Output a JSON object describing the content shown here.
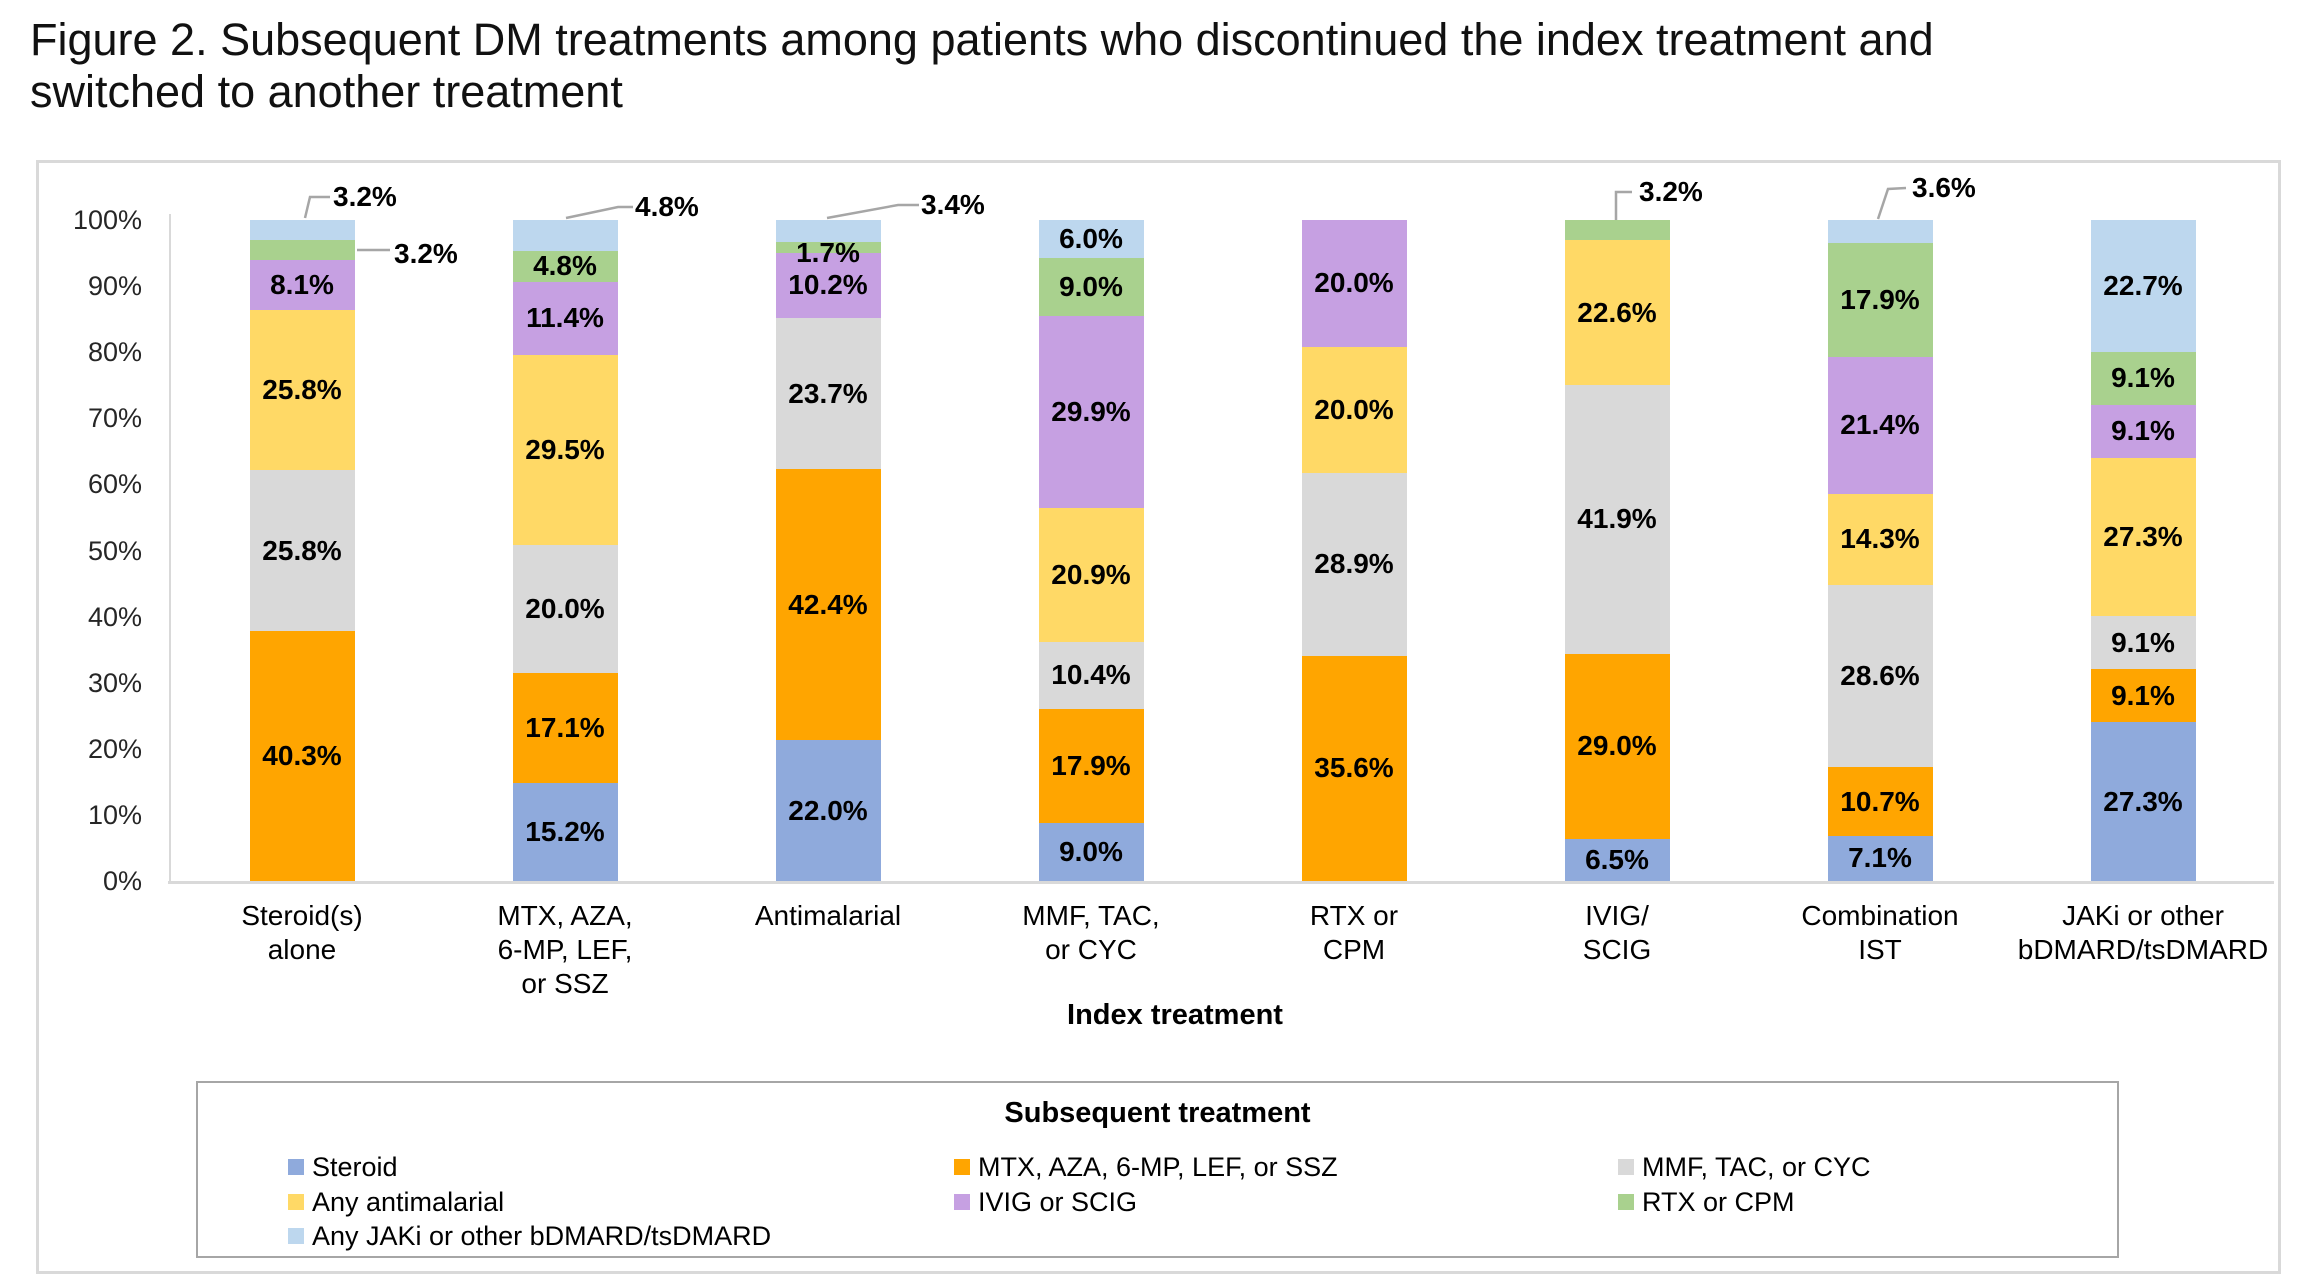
{
  "title": "Figure 2. Subsequent DM treatments among patients who discontinued the index treatment and switched to another treatment",
  "title_lines": [
    "Figure 2. Subsequent DM treatments among patients who discontinued the index treatment and",
    "switched to another treatment"
  ],
  "colors": {
    "steroid_blue": "#8FAADC",
    "mtx_orange": "#FFA500",
    "mmf_gray": "#D9D9D9",
    "antimalarial_yellow": "#FFD966",
    "ivig_purple": "#C6A0E2",
    "rtx_green": "#A9D18E",
    "jaki_lightblue": "#BDD7EE",
    "axis_line": "#D9D9D9",
    "outer_border": "#D9D9D9",
    "legend_border": "#A6A6A6",
    "callout_line": "#A6A6A6",
    "text": "#000000"
  },
  "chart_data": {
    "type": "bar",
    "subtype": "percent-stacked-column",
    "title": "Figure 2. Subsequent DM treatments among patients who discontinued the index treatment and switched to another treatment",
    "xlabel": "Index treatment",
    "ylabel": "",
    "ylim": [
      0,
      100
    ],
    "grid": false,
    "y_tick_labels": [
      "0%",
      "10%",
      "20%",
      "30%",
      "40%",
      "50%",
      "60%",
      "70%",
      "80%",
      "90%",
      "100%"
    ],
    "legend": {
      "title": "Subsequent treatment",
      "position": "bottom",
      "columns": [
        [
          "steroid",
          "antimalarial",
          "jaki"
        ],
        [
          "mtx",
          "ivig"
        ],
        [
          "mmf",
          "rtx"
        ]
      ]
    },
    "series": [
      {
        "id": "steroid",
        "legend_label": "Steroid",
        "color": "#8FAADC"
      },
      {
        "id": "mtx",
        "legend_label": "MTX, AZA, 6-MP, LEF, or SSZ",
        "color": "#FFA500"
      },
      {
        "id": "mmf",
        "legend_label": "MMF, TAC, or CYC",
        "color": "#D9D9D9"
      },
      {
        "id": "antimalarial",
        "legend_label": "Any antimalarial",
        "color": "#FFD966"
      },
      {
        "id": "ivig",
        "legend_label": "IVIG or SCIG",
        "color": "#C6A0E2"
      },
      {
        "id": "rtx",
        "legend_label": "RTX or CPM",
        "color": "#A9D18E"
      },
      {
        "id": "jaki",
        "legend_label": "Any JAKi or other bDMARD/tsDMARD",
        "color": "#BDD7EE"
      }
    ],
    "categories": [
      {
        "label": "Steroid(s) alone",
        "label_lines": [
          "Steroid(s)",
          "alone"
        ],
        "slug": "steroids-alone",
        "segments": [
          {
            "series": "mtx",
            "value": 40.3,
            "label": "40.3%",
            "label_mode": "inside"
          },
          {
            "series": "mmf",
            "value": 25.8,
            "label": "25.8%",
            "label_mode": "inside"
          },
          {
            "series": "antimalarial",
            "value": 25.8,
            "label": "25.8%",
            "label_mode": "inside"
          },
          {
            "series": "ivig",
            "value": 8.1,
            "label": "8.1%",
            "label_mode": "inside"
          },
          {
            "series": "rtx",
            "value": 3.2,
            "label": "3.2%",
            "label_mode": "callout"
          },
          {
            "series": "jaki",
            "value": 3.2,
            "label": "3.2%",
            "label_mode": "callout"
          }
        ]
      },
      {
        "label": "MTX, AZA, 6-MP, LEF, or SSZ",
        "label_lines": [
          "MTX, AZA,",
          "6-MP, LEF,",
          "or SSZ"
        ],
        "slug": "mtx-aza-6mp-lef-ssz",
        "segments": [
          {
            "series": "steroid",
            "value": 15.2,
            "label": "15.2%",
            "label_mode": "inside"
          },
          {
            "series": "mtx",
            "value": 17.1,
            "label": "17.1%",
            "label_mode": "inside"
          },
          {
            "series": "mmf",
            "value": 20.0,
            "label": "20.0%",
            "label_mode": "inside"
          },
          {
            "series": "antimalarial",
            "value": 29.5,
            "label": "29.5%",
            "label_mode": "inside"
          },
          {
            "series": "ivig",
            "value": 11.4,
            "label": "11.4%",
            "label_mode": "inside"
          },
          {
            "series": "rtx",
            "value": 4.8,
            "label": "4.8%",
            "label_mode": "inside"
          },
          {
            "series": "jaki",
            "value": 4.8,
            "label": "4.8%",
            "label_mode": "callout"
          }
        ]
      },
      {
        "label": "Antimalarial",
        "label_lines": [
          "Antimalarial"
        ],
        "slug": "antimalarial",
        "segments": [
          {
            "series": "steroid",
            "value": 22.0,
            "label": "22.0%",
            "label_mode": "inside"
          },
          {
            "series": "mtx",
            "value": 42.4,
            "label": "42.4%",
            "label_mode": "inside"
          },
          {
            "series": "mmf",
            "value": 23.7,
            "label": "23.7%",
            "label_mode": "inside"
          },
          {
            "series": "ivig",
            "value": 10.2,
            "label": "10.2%",
            "label_mode": "inside"
          },
          {
            "series": "rtx",
            "value": 1.7,
            "label": "1.7%",
            "label_mode": "inside",
            "label_dy": 6
          },
          {
            "series": "jaki",
            "value": 3.4,
            "label": "3.4%",
            "label_mode": "callout"
          }
        ]
      },
      {
        "label": "MMF, TAC, or CYC",
        "label_lines": [
          "MMF, TAC,",
          "or CYC"
        ],
        "slug": "mmf-tac-cyc",
        "segments": [
          {
            "series": "steroid",
            "value": 9.0,
            "label": "9.0%",
            "label_mode": "inside"
          },
          {
            "series": "mtx",
            "value": 17.9,
            "label": "17.9%",
            "label_mode": "inside"
          },
          {
            "series": "mmf",
            "value": 10.4,
            "label": "10.4%",
            "label_mode": "inside"
          },
          {
            "series": "antimalarial",
            "value": 20.9,
            "label": "20.9%",
            "label_mode": "inside"
          },
          {
            "series": "ivig",
            "value": 29.9,
            "label": "29.9%",
            "label_mode": "inside"
          },
          {
            "series": "rtx",
            "value": 9.0,
            "label": "9.0%",
            "label_mode": "inside"
          },
          {
            "series": "jaki",
            "value": 6.0,
            "label": "6.0%",
            "label_mode": "inside"
          }
        ]
      },
      {
        "label": "RTX or CPM",
        "label_lines": [
          "RTX or",
          "CPM"
        ],
        "slug": "rtx-cpm",
        "segments": [
          {
            "series": "mtx",
            "value": 35.6,
            "label": "35.6%",
            "label_mode": "inside"
          },
          {
            "series": "mmf",
            "value": 28.9,
            "label": "28.9%",
            "label_mode": "inside"
          },
          {
            "series": "antimalarial",
            "value": 20.0,
            "label": "20.0%",
            "label_mode": "inside"
          },
          {
            "series": "ivig",
            "value": 20.0,
            "label": "20.0%",
            "label_mode": "inside"
          }
        ]
      },
      {
        "label": "IVIG/SCIG",
        "label_lines": [
          "IVIG/",
          "SCIG"
        ],
        "slug": "ivig-scig",
        "segments": [
          {
            "series": "steroid",
            "value": 6.5,
            "label": "6.5%",
            "label_mode": "inside"
          },
          {
            "series": "mtx",
            "value": 29.0,
            "label": "29.0%",
            "label_mode": "inside"
          },
          {
            "series": "mmf",
            "value": 41.9,
            "label": "41.9%",
            "label_mode": "inside"
          },
          {
            "series": "antimalarial",
            "value": 22.6,
            "label": "22.6%",
            "label_mode": "inside"
          },
          {
            "series": "rtx",
            "value": 3.2,
            "label": "3.2%",
            "label_mode": "callout"
          }
        ]
      },
      {
        "label": "Combination IST",
        "label_lines": [
          "Combination",
          "IST"
        ],
        "slug": "combination-ist",
        "segments": [
          {
            "series": "steroid",
            "value": 7.1,
            "label": "7.1%",
            "label_mode": "inside"
          },
          {
            "series": "mtx",
            "value": 10.7,
            "label": "10.7%",
            "label_mode": "inside"
          },
          {
            "series": "mmf",
            "value": 28.6,
            "label": "28.6%",
            "label_mode": "inside"
          },
          {
            "series": "antimalarial",
            "value": 14.3,
            "label": "14.3%",
            "label_mode": "inside"
          },
          {
            "series": "ivig",
            "value": 21.4,
            "label": "21.4%",
            "label_mode": "inside"
          },
          {
            "series": "rtx",
            "value": 17.9,
            "label": "17.9%",
            "label_mode": "inside"
          },
          {
            "series": "jaki",
            "value": 3.6,
            "label": "3.6%",
            "label_mode": "callout"
          }
        ]
      },
      {
        "label": "JAKi or other bDMARD/tsDMARD",
        "label_lines": [
          "JAKi or other",
          "bDMARD/tsDMARD"
        ],
        "slug": "jaki-bdmard",
        "segments": [
          {
            "series": "steroid",
            "value": 27.3,
            "label": "27.3%",
            "label_mode": "inside"
          },
          {
            "series": "mtx",
            "value": 9.1,
            "label": "9.1%",
            "label_mode": "inside"
          },
          {
            "series": "mmf",
            "value": 9.1,
            "label": "9.1%",
            "label_mode": "inside"
          },
          {
            "series": "antimalarial",
            "value": 27.3,
            "label": "27.3%",
            "label_mode": "inside"
          },
          {
            "series": "ivig",
            "value": 9.1,
            "label": "9.1%",
            "label_mode": "inside"
          },
          {
            "series": "rtx",
            "value": 9.1,
            "label": "9.1%",
            "label_mode": "inside"
          },
          {
            "series": "jaki",
            "value": 22.7,
            "label": "22.7%",
            "label_mode": "inside"
          }
        ]
      }
    ]
  }
}
